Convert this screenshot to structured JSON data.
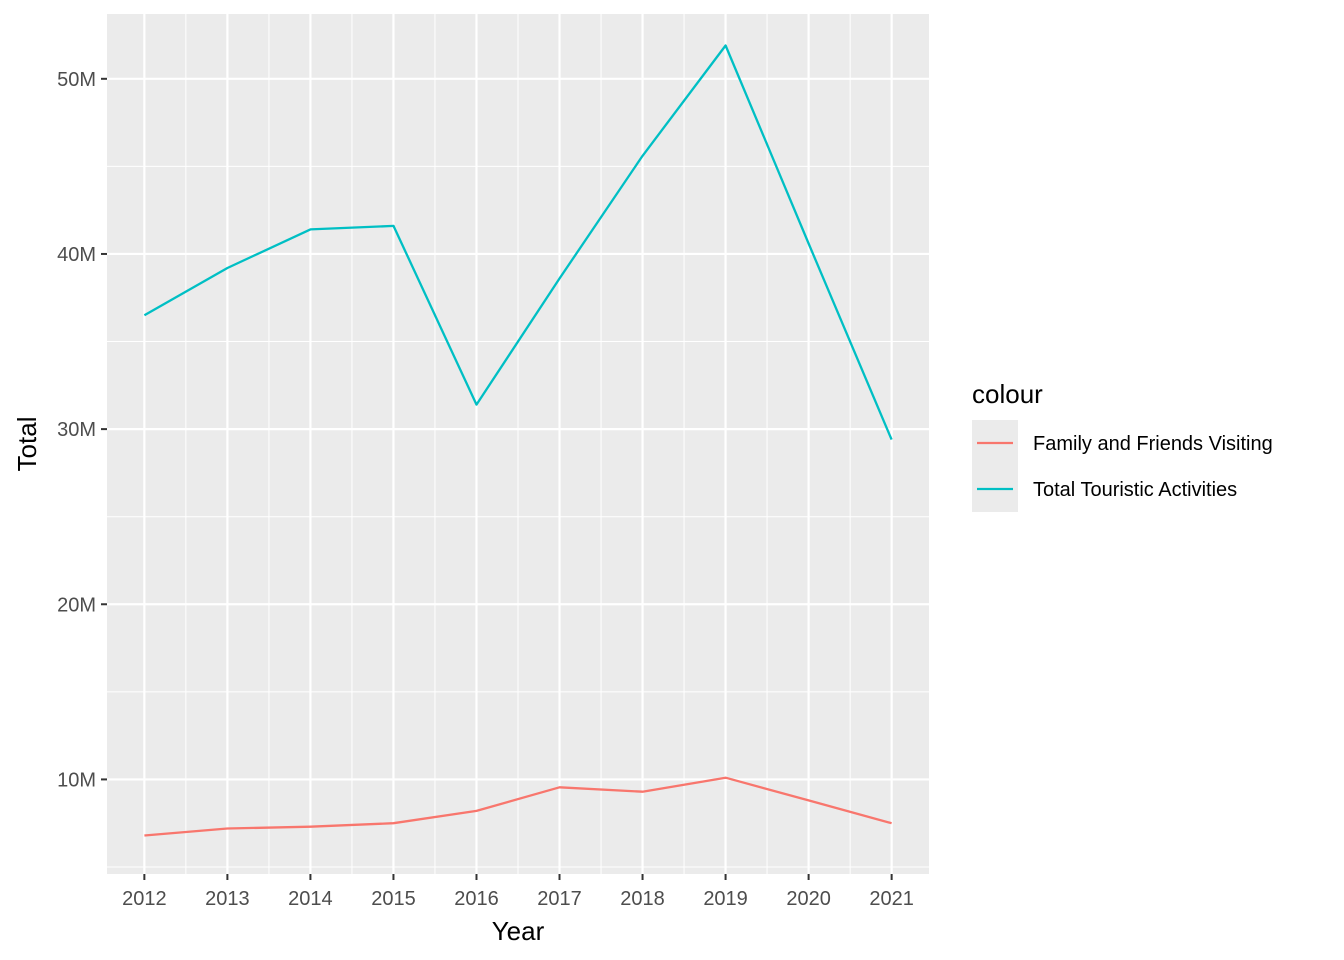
{
  "chart_data": {
    "type": "line",
    "xlabel": "Year",
    "ylabel": "Total",
    "x": [
      2012,
      2013,
      2014,
      2015,
      2016,
      2017,
      2018,
      2019,
      2020,
      2021
    ],
    "xlim": [
      2011.55,
      2021.45
    ],
    "ylim": [
      4600000,
      53700000
    ],
    "y_ticks": [
      10000000,
      20000000,
      30000000,
      40000000,
      50000000
    ],
    "y_tick_labels": [
      "10M",
      "20M",
      "30M",
      "40M",
      "50M"
    ],
    "legend_title": "colour",
    "legend_position": "right",
    "grid": true,
    "series": [
      {
        "name": "Family and Friends Visiting",
        "color": "#F8766D",
        "values": [
          6800000,
          7200000,
          7300000,
          7500000,
          8200000,
          9550000,
          9300000,
          10100000,
          8800000,
          7500000
        ]
      },
      {
        "name": "Total Touristic Activities",
        "color": "#00BFC4",
        "values": [
          36500000,
          39200000,
          41400000,
          41600000,
          31400000,
          38600000,
          45600000,
          51900000,
          40600000,
          29400000
        ]
      }
    ]
  }
}
